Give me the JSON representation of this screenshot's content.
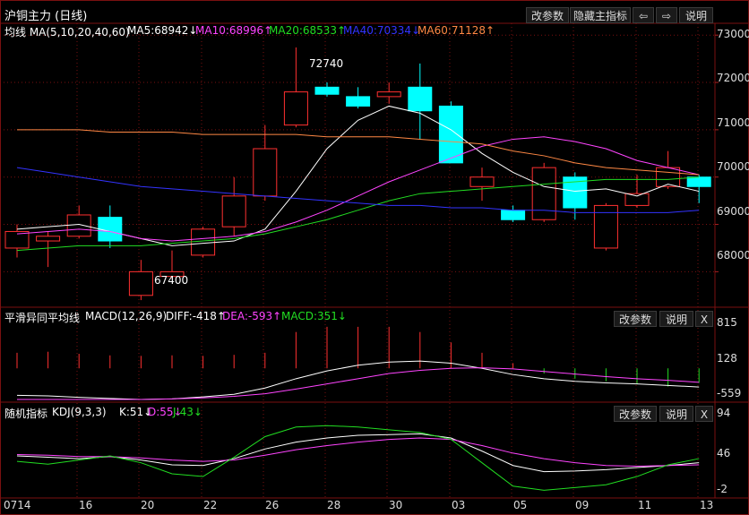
{
  "header": {
    "title": "沪铜主力 (日线)",
    "buttons": {
      "params": "改参数",
      "hide_indicator": "隐藏主指标",
      "prev": "⇦",
      "next": "⇨",
      "explain": "说明"
    }
  },
  "ma_legend": {
    "label": "均线 MA(5,10,20,40,60)",
    "ma5": "MA5:68942↓",
    "ma10": "MA10:68996↑",
    "ma20": "MA20:68533↑",
    "ma40": "MA40:70334↓",
    "ma60": "MA60:71128↑"
  },
  "colors": {
    "up": "#ff3030",
    "down": "#00ffff",
    "ma5": "#ffffff",
    "ma10": "#ff44ff",
    "ma20": "#22dd22",
    "ma40": "#3333ff",
    "ma60": "#ff8844",
    "grid": "#7a1010",
    "dif": "#ffffff",
    "dea": "#ff44ff",
    "k": "#ffffff",
    "d": "#ff44ff",
    "j": "#22dd22"
  },
  "chart_data": {
    "type": "candlestick",
    "title": "沪铜主力 (日线)",
    "ylim": [
      67250,
      73250
    ],
    "yticks": [
      68000,
      69000,
      70000,
      71000,
      72000,
      73000
    ],
    "xticks": [
      "0714",
      "16",
      "20",
      "22",
      "26",
      "28",
      "30",
      "03",
      "05",
      "09",
      "11",
      "13"
    ],
    "annotations": {
      "high": "72740",
      "low": "67400"
    },
    "candles": [
      {
        "o": 68500,
        "c": 68850,
        "h": 69000,
        "l": 68300
      },
      {
        "o": 68650,
        "c": 68750,
        "h": 68850,
        "l": 68100
      },
      {
        "o": 68750,
        "c": 69200,
        "h": 69400,
        "l": 68700
      },
      {
        "o": 69150,
        "c": 68650,
        "h": 69400,
        "l": 68500
      },
      {
        "o": 67500,
        "c": 68000,
        "h": 68250,
        "l": 67400
      },
      {
        "o": 67900,
        "c": 68000,
        "h": 68450,
        "l": 67850
      },
      {
        "o": 68350,
        "c": 68900,
        "h": 68950,
        "l": 68300
      },
      {
        "o": 68950,
        "c": 69600,
        "h": 70000,
        "l": 68750
      },
      {
        "o": 69600,
        "c": 70600,
        "h": 71100,
        "l": 69500
      },
      {
        "o": 71100,
        "c": 71800,
        "h": 72740,
        "l": 71050
      },
      {
        "o": 71900,
        "c": 71750,
        "h": 72000,
        "l": 71700
      },
      {
        "o": 71700,
        "c": 71500,
        "h": 71900,
        "l": 71450
      },
      {
        "o": 71700,
        "c": 71800,
        "h": 72000,
        "l": 71550
      },
      {
        "o": 71900,
        "c": 71400,
        "h": 72400,
        "l": 70800
      },
      {
        "o": 71500,
        "c": 70300,
        "h": 71600,
        "l": 70300
      },
      {
        "o": 69800,
        "c": 70000,
        "h": 70200,
        "l": 69500
      },
      {
        "o": 69300,
        "c": 69100,
        "h": 69400,
        "l": 69050
      },
      {
        "o": 69100,
        "c": 70200,
        "h": 70300,
        "l": 69050
      },
      {
        "o": 70000,
        "c": 69350,
        "h": 70100,
        "l": 69100
      },
      {
        "o": 68500,
        "c": 69400,
        "h": 69450,
        "l": 68450
      },
      {
        "o": 69400,
        "c": 69650,
        "h": 70050,
        "l": 69350
      },
      {
        "o": 69800,
        "c": 70200,
        "h": 70550,
        "l": 69750
      },
      {
        "o": 70000,
        "c": 69800,
        "h": 70050,
        "l": 69450
      }
    ],
    "series": [
      {
        "name": "MA5",
        "values": [
          68900,
          68950,
          69000,
          68850,
          68700,
          68550,
          68600,
          68650,
          68900,
          69700,
          70600,
          71200,
          71500,
          71350,
          71000,
          70500,
          70100,
          69800,
          69700,
          69750,
          69600,
          69850,
          69700
        ]
      },
      {
        "name": "MA10",
        "values": [
          68800,
          68850,
          68900,
          68850,
          68700,
          68650,
          68700,
          68750,
          68850,
          69050,
          69300,
          69600,
          69900,
          70150,
          70400,
          70650,
          70800,
          70850,
          70750,
          70600,
          70350,
          70200,
          70050
        ]
      },
      {
        "name": "MA20",
        "values": [
          68450,
          68500,
          68550,
          68550,
          68550,
          68600,
          68650,
          68700,
          68800,
          68950,
          69100,
          69300,
          69500,
          69650,
          69700,
          69750,
          69800,
          69850,
          69900,
          69950,
          69950,
          69950,
          70000
        ]
      },
      {
        "name": "MA40",
        "values": [
          70200,
          70100,
          70000,
          69900,
          69800,
          69750,
          69700,
          69650,
          69600,
          69550,
          69500,
          69450,
          69400,
          69400,
          69350,
          69350,
          69300,
          69300,
          69250,
          69250,
          69250,
          69250,
          69300
        ]
      },
      {
        "name": "MA60",
        "values": [
          71000,
          71000,
          71000,
          70950,
          70950,
          70950,
          70900,
          70900,
          70900,
          70900,
          70850,
          70850,
          70850,
          70800,
          70750,
          70700,
          70550,
          70450,
          70300,
          70200,
          70150,
          70100,
          70050
        ]
      }
    ]
  },
  "macd": {
    "label": "平滑异同平均线",
    "params": "MACD(12,26,9)",
    "dif": "DIFF:-418↑",
    "dea": "DEA:-593↑",
    "macd_val": "MACD:351↓",
    "ylim": [
      -600,
      850
    ],
    "yticks": [
      "815",
      "128",
      "-559"
    ],
    "dif_values": [
      -520,
      -530,
      -560,
      -580,
      -600,
      -590,
      -550,
      -500,
      -380,
      -200,
      -50,
      60,
      120,
      140,
      100,
      0,
      -120,
      -200,
      -250,
      -280,
      -300,
      -330,
      -360
    ],
    "dea_values": [
      -600,
      -600,
      -600,
      -600,
      -600,
      -590,
      -570,
      -540,
      -490,
      -400,
      -300,
      -200,
      -100,
      -40,
      0,
      10,
      -10,
      -60,
      -110,
      -160,
      -200,
      -230,
      -270
    ],
    "hist": [
      300,
      320,
      280,
      250,
      240,
      250,
      240,
      260,
      300,
      700,
      800,
      800,
      800,
      700,
      500,
      300,
      100,
      -100,
      -200,
      -250,
      -300,
      -350,
      -280
    ]
  },
  "kdj": {
    "label": "随机指标",
    "params": "KDJ(9,3,3)",
    "k": "K:51↓",
    "d": "D:55↓",
    "j": "J:43↓",
    "ylim": [
      -8,
      104
    ],
    "yticks": [
      "94",
      "46",
      "-2"
    ],
    "k_values": [
      48,
      46,
      44,
      47,
      42,
      35,
      34,
      44,
      58,
      68,
      74,
      78,
      79,
      80,
      74,
      55,
      34,
      25,
      26,
      28,
      31,
      34,
      38
    ],
    "d_values": [
      50,
      49,
      47,
      47,
      45,
      42,
      40,
      42,
      49,
      57,
      63,
      68,
      72,
      74,
      72,
      63,
      52,
      44,
      38,
      34,
      33,
      34,
      35
    ],
    "j_values": [
      40,
      36,
      42,
      48,
      38,
      22,
      18,
      46,
      76,
      90,
      92,
      90,
      86,
      82,
      72,
      38,
      4,
      -2,
      2,
      6,
      18,
      35,
      44
    ]
  },
  "panels": {
    "macd_buttons": {
      "params": "改参数",
      "explain": "说明",
      "close": "X"
    },
    "kdj_buttons": {
      "params": "改参数",
      "explain": "说明",
      "close": "X"
    }
  }
}
